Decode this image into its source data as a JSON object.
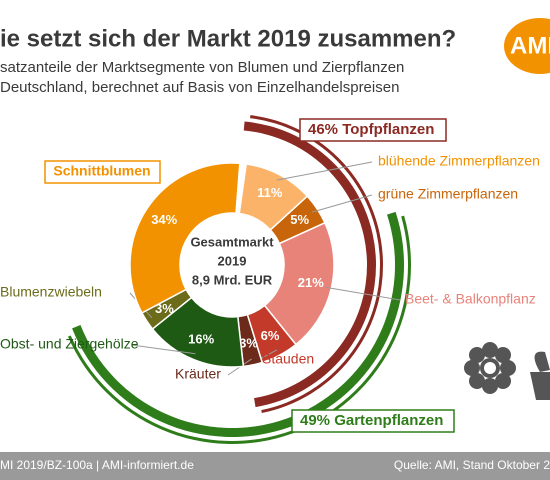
{
  "chart_data": {
    "type": "donut",
    "title": "ie setzt sich der Markt 2019 zusammen?",
    "subtitle": [
      "satzanteile der Marktsegmente von Blumen und Zierpflanzen",
      "Deutschland, berechnet auf Basis von Einzelhandelspreisen"
    ],
    "logo": "AMI",
    "center_label": [
      "Gesamtmarkt",
      "2019",
      "8,9 Mrd. EUR"
    ],
    "categories": [
      "blühende Zimmerpflanzen",
      "grüne Zimmerpflanzen",
      "Beet- & Balkonpflanz",
      "Stauden",
      "Kräuter",
      "Obst- und Ziergehölze",
      "Blumenzwiebeln",
      "Schnittblumen"
    ],
    "values": [
      11,
      5,
      21,
      6,
      3,
      16,
      3,
      34
    ],
    "value_labels": [
      "11%",
      "5%",
      "21%",
      "6%",
      "3%",
      "16%",
      "3%",
      "34%"
    ],
    "colors": [
      "#fbb36a",
      "#c8640a",
      "#e8837a",
      "#c33a2a",
      "#6b2a1a",
      "#1e5a14",
      "#6b6b1a",
      "#f39200"
    ],
    "groups": [
      {
        "name": "Topfpflanzen",
        "value": 46,
        "value_label": "46%",
        "color": "#8b2a22"
      },
      {
        "name": "Gartenpflanzen",
        "value": 49,
        "value_label": "49%",
        "color": "#2f7d1a"
      }
    ],
    "footer_left": "MI 2019/BZ-100a | AMI-informiert.de",
    "footer_right": "Quelle: AMI, Stand Oktober 2"
  }
}
